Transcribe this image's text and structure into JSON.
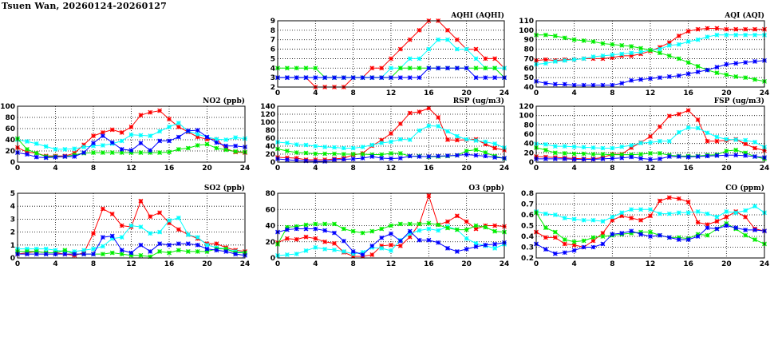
{
  "title": "Tsuen Wan, 20260124-20260127",
  "series_colors": [
    "#ff0000",
    "#00ffff",
    "#00ee00",
    "#0000ff"
  ],
  "chart_data": [
    {
      "id": "aqhi",
      "type": "line",
      "title": "AQHI (AQHI)",
      "ylim": [
        2,
        9
      ],
      "yticks": [
        2,
        3,
        4,
        5,
        6,
        7,
        8,
        9
      ],
      "xlim": [
        0,
        24
      ],
      "xticks": [
        0,
        4,
        8,
        12,
        16,
        20,
        24
      ],
      "grid": true,
      "series": [
        {
          "values": [
            3,
            3,
            3,
            3,
            2,
            2,
            2,
            2,
            3,
            3,
            4,
            4,
            5,
            6,
            7,
            8,
            9,
            9,
            8,
            7,
            6,
            6,
            5,
            5,
            4
          ]
        },
        {
          "values": [
            3,
            3,
            3,
            3,
            3,
            3,
            3,
            3,
            3,
            3,
            3,
            3,
            4,
            4,
            5,
            5,
            6,
            7,
            7,
            6,
            6,
            5,
            4,
            4,
            4
          ]
        },
        {
          "values": [
            4,
            4,
            4,
            4,
            4,
            3,
            3,
            3,
            3,
            3,
            3,
            3,
            3,
            4,
            4,
            4,
            4,
            4,
            4,
            4,
            4,
            4,
            4,
            4,
            3
          ]
        },
        {
          "values": [
            3,
            3,
            3,
            3,
            3,
            3,
            3,
            3,
            3,
            3,
            3,
            3,
            3,
            3,
            3,
            3,
            4,
            4,
            4,
            4,
            4,
            3,
            3,
            3,
            3
          ]
        }
      ]
    },
    {
      "id": "aqi",
      "type": "line",
      "title": "AQI (AQI)",
      "ylim": [
        40,
        110
      ],
      "yticks": [
        40,
        50,
        60,
        70,
        80,
        90,
        100,
        110
      ],
      "xlim": [
        0,
        24
      ],
      "xticks": [
        0,
        4,
        8,
        12,
        16,
        20,
        24
      ],
      "grid": true,
      "series": [
        {
          "values": [
            68,
            69,
            68,
            69,
            69,
            70,
            70,
            70,
            71,
            73,
            73,
            75,
            78,
            82,
            87,
            94,
            99,
            101,
            102,
            102,
            101,
            101,
            101,
            101,
            101
          ]
        },
        {
          "values": [
            64,
            65,
            67,
            68,
            69,
            70,
            72,
            73,
            74,
            75,
            76,
            77,
            79,
            80,
            84,
            85,
            88,
            90,
            93,
            95,
            95,
            95,
            95,
            95,
            95
          ]
        },
        {
          "values": [
            95,
            95,
            94,
            92,
            90,
            89,
            88,
            86,
            85,
            84,
            83,
            81,
            79,
            76,
            73,
            70,
            66,
            62,
            58,
            55,
            53,
            51,
            50,
            48,
            46
          ]
        },
        {
          "values": [
            46,
            44,
            43,
            43,
            42,
            42,
            42,
            42,
            42,
            44,
            47,
            48,
            49,
            50,
            51,
            52,
            54,
            56,
            58,
            61,
            64,
            65,
            66,
            67,
            68
          ]
        }
      ]
    },
    {
      "id": "no2",
      "type": "line",
      "title": "NO2 (ppb)",
      "ylim": [
        0,
        100
      ],
      "yticks": [
        0,
        20,
        40,
        60,
        80,
        100
      ],
      "xlim": [
        0,
        24
      ],
      "xticks": [
        0,
        4,
        8,
        12,
        16,
        20,
        24
      ],
      "grid": true,
      "series": [
        {
          "values": [
            26,
            18,
            16,
            11,
            11,
            11,
            16,
            31,
            47,
            53,
            58,
            53,
            63,
            84,
            89,
            92,
            77,
            63,
            54,
            45,
            41,
            41,
            24,
            18,
            17
          ]
        },
        {
          "values": [
            40,
            37,
            33,
            28,
            23,
            23,
            24,
            27,
            29,
            30,
            33,
            38,
            49,
            48,
            47,
            55,
            63,
            70,
            55,
            50,
            45,
            41,
            40,
            44,
            42
          ]
        },
        {
          "values": [
            42,
            23,
            16,
            10,
            10,
            10,
            13,
            16,
            17,
            17,
            17,
            17,
            17,
            17,
            17,
            17,
            18,
            23,
            25,
            30,
            32,
            25,
            22,
            19,
            18
          ]
        },
        {
          "values": [
            17,
            14,
            9,
            8,
            9,
            10,
            10,
            17,
            34,
            47,
            35,
            23,
            21,
            34,
            21,
            38,
            38,
            45,
            56,
            57,
            45,
            35,
            29,
            29,
            27
          ]
        }
      ]
    },
    {
      "id": "rsp",
      "type": "line",
      "title": "RSP (ug/m3)",
      "ylim": [
        0,
        140
      ],
      "yticks": [
        0,
        20,
        40,
        60,
        80,
        100,
        120,
        140
      ],
      "xlim": [
        0,
        24
      ],
      "xticks": [
        0,
        4,
        8,
        12,
        16,
        20,
        24
      ],
      "grid": true,
      "series": [
        {
          "values": [
            12,
            11,
            10,
            6,
            6,
            6,
            8,
            10,
            18,
            22,
            41,
            55,
            72,
            96,
            123,
            126,
            135,
            112,
            56,
            55,
            56,
            57,
            45,
            35,
            30
          ]
        },
        {
          "values": [
            50,
            48,
            44,
            43,
            40,
            38,
            37,
            35,
            35,
            38,
            43,
            48,
            51,
            57,
            56,
            79,
            91,
            90,
            77,
            65,
            57,
            54,
            51,
            46,
            36
          ]
        },
        {
          "values": [
            33,
            28,
            24,
            23,
            21,
            21,
            21,
            20,
            20,
            20,
            19,
            19,
            22,
            22,
            15,
            15,
            13,
            14,
            15,
            17,
            28,
            31,
            24,
            15,
            9
          ]
        },
        {
          "values": [
            8,
            6,
            4,
            3,
            2,
            2,
            6,
            7,
            8,
            10,
            14,
            10,
            9,
            10,
            15,
            14,
            14,
            15,
            16,
            17,
            19,
            17,
            15,
            12,
            10
          ]
        }
      ]
    },
    {
      "id": "fsp",
      "type": "line",
      "title": "FSP (ug/m3)",
      "ylim": [
        0,
        120
      ],
      "yticks": [
        0,
        20,
        40,
        60,
        80,
        100,
        120
      ],
      "xlim": [
        0,
        24
      ],
      "xticks": [
        0,
        4,
        8,
        12,
        16,
        20,
        24
      ],
      "grid": true,
      "series": [
        {
          "values": [
            12,
            11,
            10,
            9,
            8,
            7,
            7,
            10,
            17,
            17,
            31,
            42,
            55,
            76,
            99,
            103,
            111,
            91,
            45,
            45,
            47,
            49,
            39,
            30,
            25
          ]
        },
        {
          "values": [
            39,
            38,
            34,
            34,
            33,
            32,
            31,
            30,
            30,
            33,
            36,
            41,
            42,
            45,
            45,
            64,
            74,
            73,
            63,
            54,
            49,
            48,
            47,
            43,
            32
          ]
        },
        {
          "values": [
            31,
            26,
            20,
            19,
            18,
            18,
            17,
            17,
            16,
            16,
            16,
            17,
            19,
            19,
            15,
            13,
            13,
            13,
            15,
            16,
            24,
            26,
            20,
            12,
            7
          ]
        },
        {
          "values": [
            7,
            7,
            7,
            7,
            6,
            6,
            6,
            7,
            8,
            9,
            11,
            8,
            6,
            7,
            12,
            12,
            11,
            12,
            13,
            14,
            15,
            15,
            14,
            12,
            10
          ]
        }
      ]
    },
    {
      "id": "so2",
      "type": "line",
      "title": "SO2 (ppb)",
      "ylim": [
        0,
        5
      ],
      "yticks": [
        0,
        1,
        2,
        3,
        4,
        5
      ],
      "xlim": [
        0,
        24
      ],
      "xticks": [
        0,
        4,
        8,
        12,
        16,
        20,
        24
      ],
      "grid": true,
      "series": [
        {
          "values": [
            0.3,
            0.4,
            0.5,
            0.4,
            0.4,
            0.3,
            0.2,
            0.4,
            1.9,
            3.8,
            3.4,
            2.5,
            2.4,
            4.4,
            3.2,
            3.5,
            2.7,
            2.2,
            1.8,
            1.5,
            1.1,
            1.1,
            0.8,
            0.6,
            0.5
          ]
        },
        {
          "values": [
            0.7,
            0.7,
            0.7,
            0.7,
            0.6,
            0.5,
            0.5,
            0.6,
            0.7,
            0.9,
            1.5,
            1.6,
            2.5,
            2.4,
            1.9,
            2.0,
            2.9,
            3.1,
            1.8,
            1.6,
            1.0,
            0.8,
            0.7,
            0.5,
            0.4
          ]
        },
        {
          "values": [
            0.5,
            0.5,
            0.5,
            0.4,
            0.4,
            0.6,
            0.3,
            0.3,
            0.3,
            0.3,
            0.4,
            0.3,
            0.2,
            0.2,
            0.1,
            0.5,
            0.4,
            0.6,
            0.5,
            0.5,
            0.5,
            0.7,
            0.7,
            0.4,
            0.4
          ]
        },
        {
          "values": [
            0.3,
            0.3,
            0.3,
            0.3,
            0.3,
            0.3,
            0.3,
            0.3,
            0.3,
            1.6,
            1.7,
            0.6,
            0.4,
            1.0,
            0.5,
            1.1,
            1.0,
            1.1,
            1.1,
            1.0,
            0.7,
            0.6,
            0.5,
            0.3,
            0.2
          ]
        }
      ]
    },
    {
      "id": "o3",
      "type": "line",
      "title": "O3 (ppb)",
      "ylim": [
        0,
        80
      ],
      "yticks": [
        0,
        20,
        40,
        60,
        80
      ],
      "xlim": [
        0,
        24
      ],
      "xticks": [
        0,
        4,
        8,
        12,
        16,
        20,
        24
      ],
      "grid": true,
      "series": [
        {
          "values": [
            19,
            24,
            23,
            26,
            24,
            20,
            18,
            7,
            2,
            2,
            4,
            15,
            16,
            15,
            26,
            42,
            77,
            41,
            45,
            52,
            45,
            36,
            40,
            40,
            39
          ]
        },
        {
          "values": [
            3,
            4,
            5,
            9,
            13,
            11,
            10,
            8,
            5,
            7,
            13,
            12,
            9,
            22,
            30,
            34,
            36,
            34,
            39,
            35,
            24,
            18,
            15,
            12,
            17
          ]
        },
        {
          "values": [
            17,
            38,
            39,
            41,
            42,
            42,
            42,
            36,
            33,
            31,
            33,
            36,
            40,
            42,
            42,
            42,
            43,
            41,
            37,
            35,
            35,
            40,
            38,
            33,
            32
          ]
        },
        {
          "values": [
            32,
            35,
            36,
            36,
            36,
            34,
            31,
            21,
            8,
            4,
            15,
            25,
            30,
            21,
            33,
            22,
            22,
            19,
            12,
            8,
            11,
            14,
            16,
            17,
            19
          ]
        }
      ]
    },
    {
      "id": "co",
      "type": "line",
      "title": "CO (ppm)",
      "ylim": [
        0.2,
        0.8
      ],
      "yticks": [
        0.2,
        0.3,
        0.4,
        0.5,
        0.6,
        0.7,
        0.8
      ],
      "xlim": [
        0,
        24
      ],
      "xticks": [
        0,
        4,
        8,
        12,
        16,
        20,
        24
      ],
      "grid": true,
      "series": [
        {
          "values": [
            0.44,
            0.39,
            0.39,
            0.33,
            0.32,
            0.3,
            0.36,
            0.43,
            0.55,
            0.59,
            0.57,
            0.55,
            0.59,
            0.73,
            0.76,
            0.75,
            0.72,
            0.53,
            0.51,
            0.54,
            0.58,
            0.63,
            0.58,
            0.47,
            0.45
          ]
        },
        {
          "values": [
            0.63,
            0.61,
            0.6,
            0.57,
            0.56,
            0.55,
            0.55,
            0.54,
            0.58,
            0.62,
            0.65,
            0.65,
            0.65,
            0.61,
            0.61,
            0.62,
            0.62,
            0.63,
            0.61,
            0.58,
            0.63,
            0.62,
            0.64,
            0.68,
            0.62
          ]
        },
        {
          "values": [
            0.62,
            0.48,
            0.44,
            0.37,
            0.35,
            0.36,
            0.39,
            0.4,
            0.41,
            0.42,
            0.43,
            0.44,
            0.44,
            0.41,
            0.39,
            0.39,
            0.38,
            0.42,
            0.41,
            0.47,
            0.52,
            0.47,
            0.41,
            0.37,
            0.33
          ]
        },
        {
          "values": [
            0.33,
            0.28,
            0.24,
            0.25,
            0.27,
            0.3,
            0.3,
            0.33,
            0.42,
            0.43,
            0.45,
            0.42,
            0.4,
            0.41,
            0.39,
            0.37,
            0.37,
            0.4,
            0.48,
            0.47,
            0.5,
            0.48,
            0.46,
            0.46,
            0.45
          ]
        }
      ]
    }
  ]
}
